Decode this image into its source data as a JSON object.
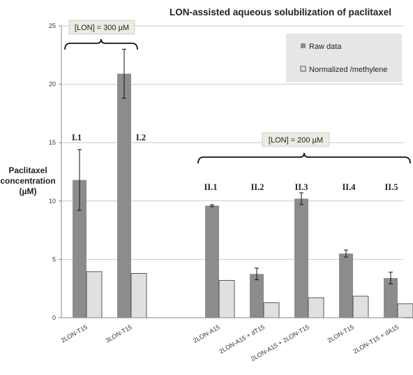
{
  "chart_data": {
    "type": "bar",
    "title": "LON-assisted aqueous solubilization of paclitaxel",
    "ylabel_lines": [
      "Paclitaxel",
      "concentration",
      "(µM)"
    ],
    "ylim": [
      0,
      25
    ],
    "yticks": [
      0,
      5,
      10,
      15,
      20,
      25
    ],
    "grid": true,
    "legend_position": "top-right",
    "categories": [
      "2LON-T15",
      "3LON-T15",
      "2LON-A15",
      "2LON-A15 + dT15",
      "2LON-A15 + 2LON-T15",
      "2LON-T15",
      "2LON-T15 + dA15"
    ],
    "group_labels": [
      "I.1",
      "I.2",
      "II.1",
      "II.2",
      "II.3",
      "II.4",
      "II.5"
    ],
    "series": [
      {
        "name": "Raw data",
        "color": "#8c8c8c",
        "values": [
          11.8,
          20.9,
          9.6,
          3.75,
          10.2,
          5.5,
          3.4
        ],
        "errors": [
          2.6,
          2.1,
          0.08,
          0.5,
          0.5,
          0.3,
          0.5
        ]
      },
      {
        "name": "Normalized /methylene",
        "color": "#e0e0e0",
        "values": [
          3.95,
          3.8,
          3.2,
          1.28,
          1.72,
          1.85,
          1.2
        ]
      }
    ],
    "annotations": [
      {
        "text": "[LON] = 300 µM",
        "spans": [
          0,
          1
        ]
      },
      {
        "text": "[LON] = 200 µM",
        "spans": [
          2,
          6
        ]
      }
    ]
  }
}
